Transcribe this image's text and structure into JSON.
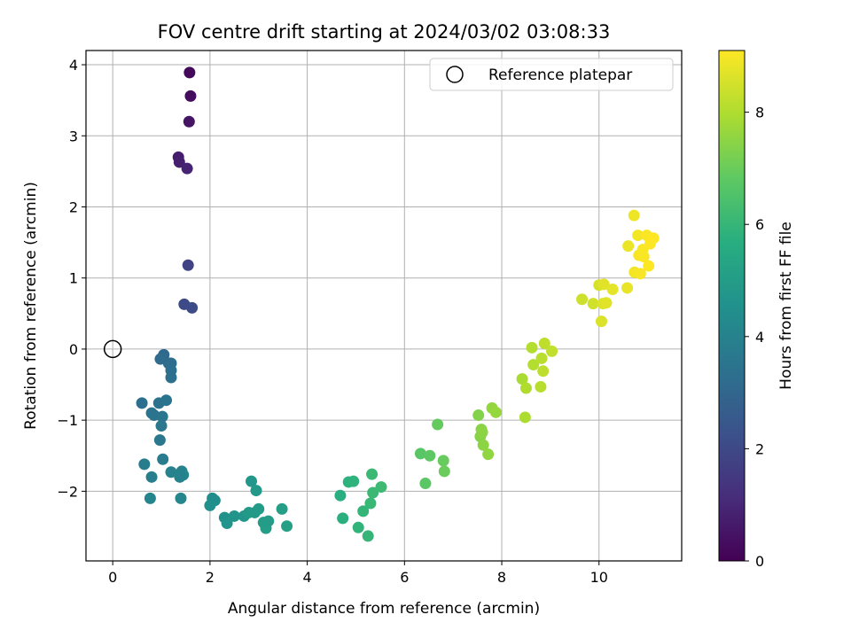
{
  "chart_data": {
    "type": "scatter",
    "title": "FOV centre drift starting at 2024/03/02 03:08:33",
    "xlabel": "Angular distance from reference (arcmin)",
    "ylabel": "Rotation from reference (arcmin)",
    "xlim": [
      -0.55,
      11.7
    ],
    "ylim": [
      -2.98,
      4.2
    ],
    "xticks": [
      0,
      2,
      4,
      6,
      8,
      10
    ],
    "yticks": [
      -2,
      -1,
      0,
      1,
      2,
      3,
      4
    ],
    "grid": true,
    "legend": {
      "position": "top-right",
      "entries": [
        "Reference platepar"
      ]
    },
    "reference_point": {
      "x": 0,
      "y": 0,
      "marker": "open-circle"
    },
    "colorbar": {
      "label": "Hours from first FF file",
      "colormap": "viridis",
      "range": [
        0,
        9.1
      ],
      "ticks": [
        0,
        2,
        4,
        6,
        8
      ]
    },
    "series": [
      {
        "x": [
          1.58,
          1.6,
          1.57,
          1.35,
          1.37,
          1.53,
          1.55,
          1.47,
          1.63,
          1.05,
          1.15,
          0.98,
          1.2,
          1.2,
          1.2,
          0.6,
          0.95,
          0.8,
          0.85,
          1.1,
          1.02,
          1.0,
          0.97,
          0.65,
          1.03,
          0.8,
          1.2,
          1.42,
          1.45,
          1.38,
          0.77,
          1.4,
          2.05,
          2.1,
          2.0,
          2.3,
          2.35,
          2.5,
          2.7,
          2.85,
          2.95,
          2.8,
          2.92,
          3.0,
          3.1,
          3.15,
          3.2,
          3.48,
          3.58,
          4.68,
          4.73,
          4.85,
          4.95,
          5.05,
          5.15,
          5.25,
          5.3,
          5.33,
          5.35,
          5.52,
          6.33,
          6.43,
          6.52,
          6.68,
          6.8,
          6.82,
          7.52,
          7.56,
          7.58,
          7.6,
          7.62,
          7.72,
          7.8,
          7.88,
          8.42,
          8.48,
          8.5,
          8.62,
          8.65,
          8.8,
          8.82,
          8.88,
          8.85,
          9.03,
          9.65,
          9.88,
          10.0,
          10.05,
          10.08,
          10.1,
          10.15,
          10.28,
          10.58,
          10.6,
          10.72,
          10.73,
          10.8,
          10.82,
          10.85,
          10.9,
          10.92,
          10.98,
          11.02,
          11.05,
          11.12
        ],
        "y": [
          3.89,
          3.56,
          3.2,
          2.7,
          2.63,
          2.54,
          1.18,
          0.63,
          0.58,
          -0.08,
          -0.2,
          -0.14,
          -0.2,
          -0.3,
          -0.4,
          -0.76,
          -0.76,
          -0.9,
          -0.93,
          -0.72,
          -0.95,
          -1.08,
          -1.28,
          -1.62,
          -1.55,
          -1.8,
          -1.73,
          -1.72,
          -1.77,
          -1.8,
          -2.1,
          -2.1,
          -2.1,
          -2.13,
          -2.2,
          -2.37,
          -2.45,
          -2.35,
          -2.35,
          -1.86,
          -1.99,
          -2.3,
          -2.3,
          -2.25,
          -2.44,
          -2.52,
          -2.42,
          -2.25,
          -2.49,
          -2.06,
          -2.38,
          -1.87,
          -1.86,
          -2.51,
          -2.28,
          -2.63,
          -2.17,
          -1.76,
          -2.02,
          -1.94,
          -1.47,
          -1.89,
          -1.5,
          -1.06,
          -1.57,
          -1.72,
          -0.93,
          -1.23,
          -1.13,
          -1.17,
          -1.35,
          -1.48,
          -0.83,
          -0.89,
          -0.42,
          -0.96,
          -0.55,
          0.02,
          -0.22,
          -0.53,
          -0.13,
          0.08,
          -0.31,
          -0.03,
          0.7,
          0.64,
          0.9,
          0.39,
          0.64,
          0.91,
          0.65,
          0.84,
          0.86,
          1.45,
          1.88,
          1.08,
          1.6,
          1.32,
          1.06,
          1.4,
          1.3,
          1.6,
          1.17,
          1.48,
          1.56
        ],
        "c": [
          0.2,
          0.3,
          0.5,
          0.7,
          0.8,
          0.9,
          1.8,
          2.0,
          2.1,
          3.1,
          3.15,
          3.2,
          3.25,
          3.3,
          3.35,
          3.3,
          3.4,
          3.45,
          3.5,
          3.5,
          3.55,
          3.6,
          3.6,
          3.8,
          3.75,
          3.9,
          4.0,
          4.05,
          4.1,
          4.05,
          4.1,
          4.15,
          4.4,
          4.45,
          4.5,
          4.6,
          4.65,
          4.7,
          4.75,
          4.8,
          4.85,
          4.9,
          4.9,
          4.95,
          5.0,
          5.05,
          5.0,
          5.1,
          5.15,
          5.7,
          5.75,
          5.8,
          5.85,
          5.9,
          5.95,
          6.0,
          6.05,
          6.1,
          6.1,
          6.15,
          6.7,
          6.75,
          6.8,
          6.9,
          6.95,
          7.0,
          7.35,
          7.4,
          7.45,
          7.5,
          7.5,
          7.55,
          7.6,
          7.65,
          7.9,
          7.95,
          8.0,
          8.05,
          8.05,
          8.1,
          8.15,
          8.2,
          8.2,
          8.25,
          8.4,
          8.45,
          8.55,
          8.6,
          8.65,
          8.7,
          8.7,
          8.75,
          8.8,
          8.85,
          8.9,
          8.95,
          8.95,
          9.0,
          9.0,
          9.05,
          9.05,
          9.05,
          9.1,
          9.1,
          9.1
        ]
      }
    ]
  }
}
